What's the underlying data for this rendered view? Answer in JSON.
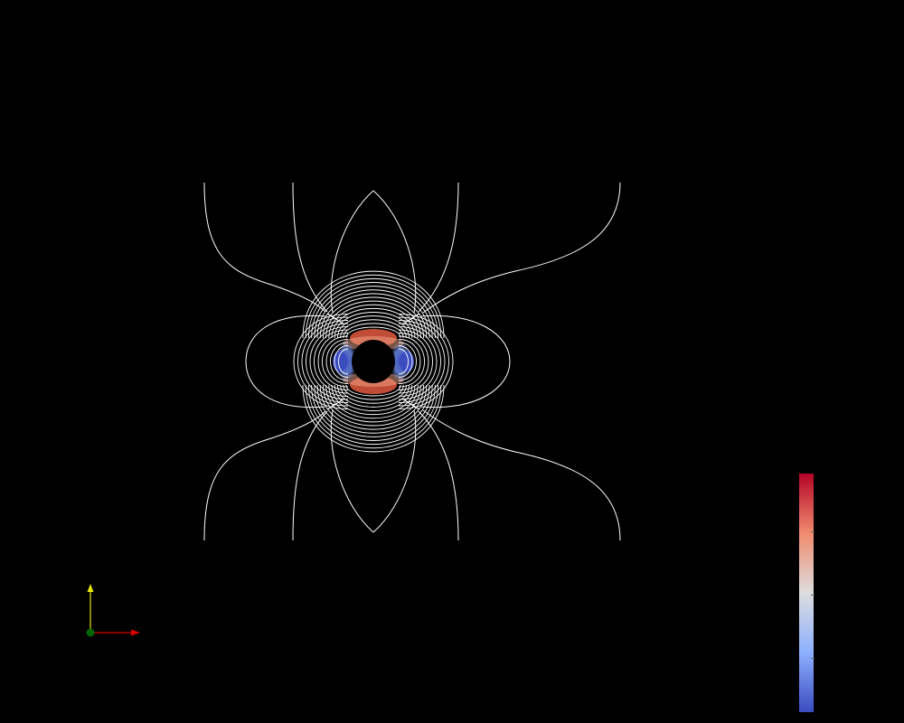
{
  "view": {
    "background": "#000000",
    "contour_color": "#ffffff"
  },
  "colormap": {
    "name": "Cool to Warm",
    "colors": [
      "#3b4cc0",
      "#8db0fe",
      "#dddddd",
      "#f49a7b",
      "#b40426"
    ]
  },
  "orientation_axes": {
    "x_color": "#dd0000",
    "y_color": "#e6e600",
    "z_color": "#006400"
  }
}
